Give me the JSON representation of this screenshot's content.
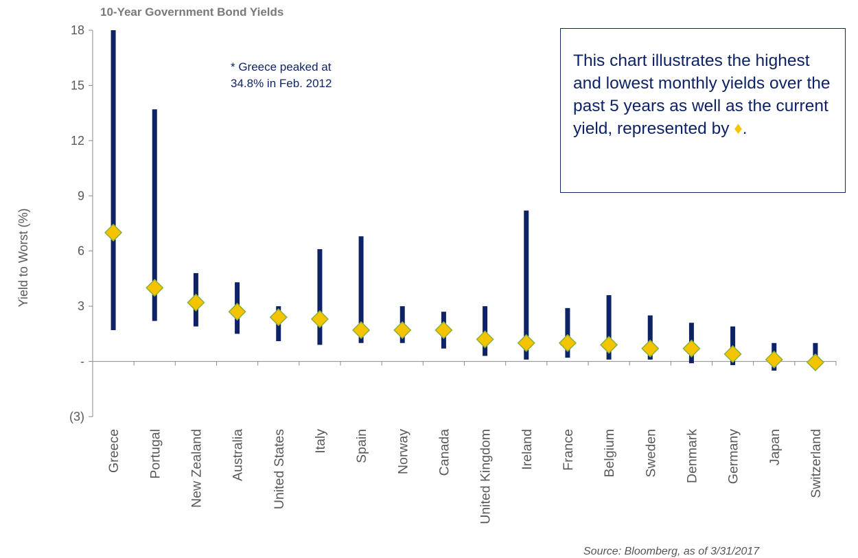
{
  "chart_data": {
    "type": "range",
    "title": "10-Year Government Bond Yields",
    "ylabel": "Yield to Worst (%)",
    "xlabel": "",
    "ylim": [
      -3,
      18
    ],
    "yticks": [
      18,
      15,
      12,
      9,
      6,
      3,
      0,
      -3
    ],
    "ytick_labels": [
      "18",
      "15",
      "12",
      "9",
      "6",
      "3",
      "-",
      "(3)"
    ],
    "categories": [
      "Greece",
      "Portugal",
      "New Zealand",
      "Australia",
      "United States",
      "Italy",
      "Spain",
      "Norway",
      "Canada",
      "United Kingdom",
      "Ireland",
      "France",
      "Belgium",
      "Sweden",
      "Denmark",
      "Germany",
      "Japan",
      "Switzerland"
    ],
    "series": [
      {
        "name": "Highest monthly yield",
        "values": [
          34.8,
          13.7,
          4.8,
          4.3,
          3.0,
          6.1,
          6.8,
          3.0,
          2.7,
          3.0,
          8.2,
          2.9,
          3.6,
          2.5,
          2.1,
          1.9,
          1.0,
          1.0
        ]
      },
      {
        "name": "Lowest monthly yield",
        "values": [
          1.7,
          2.2,
          1.9,
          1.5,
          1.1,
          0.9,
          1.0,
          1.0,
          0.7,
          0.3,
          0.1,
          0.2,
          0.1,
          0.1,
          -0.1,
          -0.2,
          -0.5,
          -0.2
        ]
      },
      {
        "name": "Current yield",
        "values": [
          7.0,
          4.0,
          3.2,
          2.7,
          2.4,
          2.3,
          1.7,
          1.7,
          1.7,
          1.2,
          1.0,
          1.0,
          0.9,
          0.7,
          0.7,
          0.4,
          0.1,
          -0.05
        ]
      }
    ],
    "colors": {
      "range_bar": "#0d2366",
      "current_marker": "#f5c400",
      "marker_edge": "#8aae3a",
      "axis": "#8a8a8a",
      "text": "#595959"
    },
    "grid": false,
    "legend": "none"
  },
  "callout": {
    "text": "This chart illustrates the highest and lowest monthly yields over the past 5 years as well as the current yield, represented by ",
    "symbol": "♦",
    "end": "."
  },
  "note": {
    "line1": "* Greece peaked at",
    "line2": "34.8% in Feb. 2012"
  },
  "source": "Source: Bloomberg, as of 3/31/2017"
}
